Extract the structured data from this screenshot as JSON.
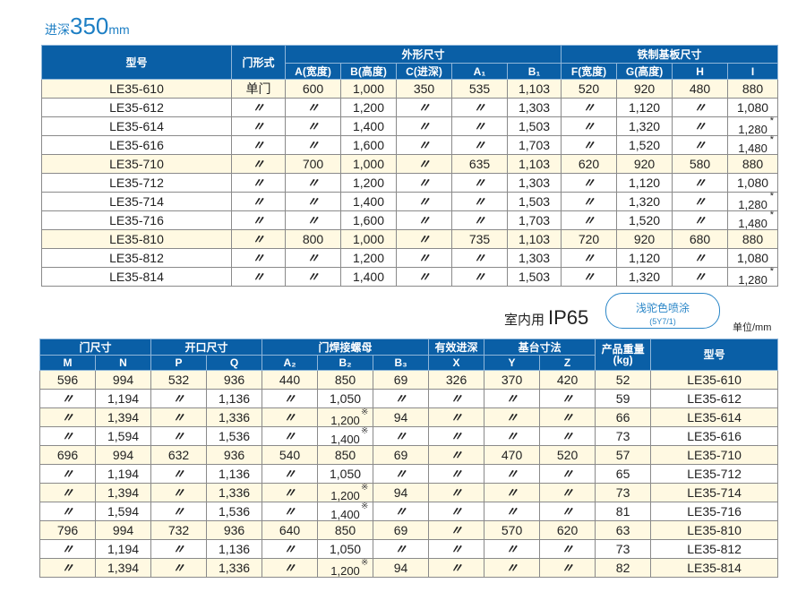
{
  "header": {
    "label": "进深",
    "depth_value": "350",
    "depth_unit": "mm"
  },
  "table1": {
    "groups": {
      "model": "型号",
      "door_type": "门形式",
      "outer": "外形尺寸",
      "plate": "铁制基板尺寸"
    },
    "columns": [
      "A(宽度)",
      "B(高度)",
      "C(进深)",
      "A₁",
      "B₁",
      "F(宽度)",
      "G(高度)",
      "H",
      "I"
    ],
    "rows": [
      [
        "LE35-610",
        "单门",
        "600",
        "1,000",
        "350",
        "535",
        "1,103",
        "520",
        "920",
        "480",
        "880"
      ],
      [
        "LE35-612",
        "〃",
        "〃",
        "1,200",
        "〃",
        "〃",
        "1,303",
        "〃",
        "1,120",
        "〃",
        "1,080"
      ],
      [
        "LE35-614",
        "〃",
        "〃",
        "1,400",
        "〃",
        "〃",
        "1,503",
        "〃",
        "1,320",
        "〃",
        "1,280"
      ],
      [
        "LE35-616",
        "〃",
        "〃",
        "1,600",
        "〃",
        "〃",
        "1,703",
        "〃",
        "1,520",
        "〃",
        "1,480"
      ],
      [
        "LE35-710",
        "〃",
        "700",
        "1,000",
        "〃",
        "635",
        "1,103",
        "620",
        "920",
        "580",
        "880"
      ],
      [
        "LE35-712",
        "〃",
        "〃",
        "1,200",
        "〃",
        "〃",
        "1,303",
        "〃",
        "1,120",
        "〃",
        "1,080"
      ],
      [
        "LE35-714",
        "〃",
        "〃",
        "1,400",
        "〃",
        "〃",
        "1,503",
        "〃",
        "1,320",
        "〃",
        "1,280"
      ],
      [
        "LE35-716",
        "〃",
        "〃",
        "1,600",
        "〃",
        "〃",
        "1,703",
        "〃",
        "1,520",
        "〃",
        "1,480"
      ],
      [
        "LE35-810",
        "〃",
        "800",
        "1,000",
        "〃",
        "735",
        "1,103",
        "720",
        "920",
        "680",
        "880"
      ],
      [
        "LE35-812",
        "〃",
        "〃",
        "1,200",
        "〃",
        "〃",
        "1,303",
        "〃",
        "1,120",
        "〃",
        "1,080"
      ],
      [
        "LE35-814",
        "〃",
        "〃",
        "1,400",
        "〃",
        "〃",
        "1,503",
        "〃",
        "1,320",
        "〃",
        "1,280"
      ]
    ],
    "star_mark": "*",
    "star_rows": [
      2,
      3,
      6,
      7,
      10
    ]
  },
  "indoor": {
    "label": "室内用",
    "rating": "IP65"
  },
  "coating": {
    "name": "浅驼色喷涂",
    "code": "(5Y7/1)"
  },
  "unit_note": "单位/mm",
  "table2": {
    "groups": {
      "door_size": "门尺寸",
      "opening": "开口尺寸",
      "weld_nut": "门焊接螺母",
      "eff_depth": "有效进深",
      "base": "基台寸法",
      "weight": "产品重量",
      "weight_unit": "(kg)",
      "model": "型号"
    },
    "columns": [
      "M",
      "N",
      "P",
      "Q",
      "A₂",
      "B₂",
      "B₃",
      "X",
      "Y",
      "Z"
    ],
    "rows": [
      [
        "596",
        "994",
        "532",
        "936",
        "440",
        "850",
        "69",
        "326",
        "370",
        "420",
        "52",
        "LE35-610"
      ],
      [
        "〃",
        "1,194",
        "〃",
        "1,136",
        "〃",
        "1,050",
        "〃",
        "〃",
        "〃",
        "〃",
        "59",
        "LE35-612"
      ],
      [
        "〃",
        "1,394",
        "〃",
        "1,336",
        "〃",
        "1,200",
        "94",
        "〃",
        "〃",
        "〃",
        "66",
        "LE35-614"
      ],
      [
        "〃",
        "1,594",
        "〃",
        "1,536",
        "〃",
        "1,400",
        "〃",
        "〃",
        "〃",
        "〃",
        "73",
        "LE35-616"
      ],
      [
        "696",
        "994",
        "632",
        "936",
        "540",
        "850",
        "69",
        "〃",
        "470",
        "520",
        "57",
        "LE35-710"
      ],
      [
        "〃",
        "1,194",
        "〃",
        "1,136",
        "〃",
        "1,050",
        "〃",
        "〃",
        "〃",
        "〃",
        "65",
        "LE35-712"
      ],
      [
        "〃",
        "1,394",
        "〃",
        "1,336",
        "〃",
        "1,200",
        "94",
        "〃",
        "〃",
        "〃",
        "73",
        "LE35-714"
      ],
      [
        "〃",
        "1,594",
        "〃",
        "1,536",
        "〃",
        "1,400",
        "〃",
        "〃",
        "〃",
        "〃",
        "81",
        "LE35-716"
      ],
      [
        "796",
        "994",
        "732",
        "936",
        "640",
        "850",
        "69",
        "〃",
        "570",
        "620",
        "63",
        "LE35-810"
      ],
      [
        "〃",
        "1,194",
        "〃",
        "1,136",
        "〃",
        "1,050",
        "〃",
        "〃",
        "〃",
        "〃",
        "73",
        "LE35-812"
      ],
      [
        "〃",
        "1,394",
        "〃",
        "1,336",
        "〃",
        "1,200",
        "94",
        "〃",
        "〃",
        "〃",
        "82",
        "LE35-814"
      ]
    ],
    "ref_mark": "※",
    "ref_rows": [
      2,
      3,
      6,
      7,
      10
    ]
  },
  "colors": {
    "header_blue": "#0a5fa6",
    "accent_blue": "#1e7fc4",
    "cream_row": "#fff9e2"
  }
}
